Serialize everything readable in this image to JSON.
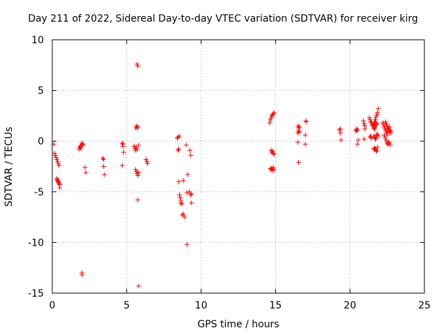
{
  "chart_data": {
    "type": "scatter",
    "title": "Day 211 of 2022, Sidereal Day-to-day VTEC variation (SDTVAR) for receiver kirg",
    "xlabel": "GPS time / hours",
    "ylabel": "SDTVAR / TECUs",
    "xlim": [
      0,
      25
    ],
    "ylim": [
      -15,
      10
    ],
    "xticks": [
      0,
      5,
      10,
      15,
      20,
      25
    ],
    "yticks": [
      -15,
      -10,
      -5,
      0,
      5,
      10
    ],
    "xtick_labels": [
      "0",
      "5",
      "10",
      "15",
      "20",
      "25"
    ],
    "ytick_labels": [
      "-15",
      "-10",
      "-5",
      "0",
      "5",
      "10"
    ],
    "grid": true,
    "marker": "+",
    "marker_color": "#ff0000",
    "x": [
      0.1,
      0.15,
      0.2,
      0.25,
      0.3,
      0.35,
      0.4,
      0.45,
      0.3,
      0.35,
      0.4,
      0.45,
      0.5,
      0.5,
      0.35,
      0.4,
      0.45,
      1.8,
      1.85,
      1.9,
      1.95,
      2.0,
      2.05,
      1.9,
      2.0,
      2.2,
      2.25,
      2.0,
      2.05,
      3.4,
      3.45,
      3.5,
      3.45,
      4.7,
      4.75,
      4.8,
      4.7,
      4.75,
      5.5,
      5.55,
      5.6,
      5.65,
      5.7,
      5.6,
      5.65,
      5.7,
      5.75,
      5.8,
      5.7,
      5.75,
      5.6,
      5.65,
      5.7,
      5.75,
      5.75,
      5.8,
      5.8,
      6.3,
      6.35,
      6.4,
      8.4,
      8.45,
      8.5,
      8.55,
      8.6,
      8.65,
      8.7,
      8.75,
      8.8,
      8.45,
      8.5,
      8.55,
      8.65,
      8.8,
      8.9,
      9.0,
      9.05,
      9.1,
      9.2,
      9.25,
      9.3,
      9.35,
      9.3,
      9.35,
      9.05,
      14.6,
      14.65,
      14.7,
      14.75,
      14.8,
      14.85,
      14.9,
      14.7,
      14.75,
      14.8,
      14.85,
      14.9,
      14.65,
      14.7,
      14.75,
      14.8,
      14.85,
      14.9,
      16.5,
      16.55,
      16.6,
      16.5,
      16.55,
      16.6,
      16.55,
      16.5,
      17.0,
      17.05,
      17.0,
      17.05,
      19.3,
      19.35,
      19.4,
      19.35,
      20.4,
      20.45,
      20.5,
      20.55,
      20.5,
      20.45,
      20.9,
      20.95,
      21.0,
      20.95,
      21.0,
      21.3,
      21.35,
      21.4,
      21.45,
      21.5,
      21.55,
      21.6,
      21.65,
      21.7,
      21.75,
      21.8,
      21.85,
      21.9,
      21.6,
      21.65,
      21.7,
      21.75,
      21.8,
      21.85,
      21.9,
      21.55,
      21.6,
      21.65,
      21.7,
      21.75,
      21.8,
      21.65,
      21.7,
      21.75,
      21.8,
      21.85,
      21.35,
      21.4,
      21.45,
      21.6,
      21.65,
      21.7,
      21.75,
      22.2,
      22.25,
      22.3,
      22.35,
      22.4,
      22.45,
      22.5,
      22.55,
      22.6,
      22.65,
      22.7,
      22.3,
      22.35,
      22.4,
      22.45,
      22.5,
      22.55,
      22.6,
      22.65,
      22.7,
      22.4,
      22.45,
      22.5,
      22.55,
      22.6,
      22.65,
      22.7,
      22.75
    ],
    "y": [
      -0.3,
      -1.2,
      -1.4,
      -1.6,
      -1.8,
      -2.0,
      -2.2,
      -2.4,
      -3.7,
      -3.9,
      -4.0,
      -4.1,
      -4.3,
      -4.6,
      -3.8,
      -4.0,
      -4.2,
      -0.8,
      -0.6,
      -0.5,
      -0.4,
      -0.2,
      -0.4,
      -0.7,
      -13.0,
      -2.6,
      -3.1,
      -13.2,
      -0.3,
      -1.7,
      -2.5,
      -3.3,
      -1.8,
      -0.2,
      -0.5,
      -1.1,
      -2.4,
      -0.3,
      -0.5,
      -0.7,
      -0.9,
      -0.6,
      -0.8,
      -2.8,
      -3.0,
      -3.2,
      -3.4,
      -3.1,
      1.3,
      1.4,
      1.3,
      1.5,
      7.6,
      7.4,
      -5.8,
      -14.3,
      -0.4,
      -1.8,
      -2.0,
      -2.2,
      0.3,
      -0.9,
      -4.0,
      -5.3,
      -5.6,
      -5.9,
      -6.2,
      -7.3,
      -3.9,
      0.4,
      -0.8,
      0.5,
      -6.1,
      -7.2,
      -7.5,
      -0.4,
      -10.2,
      -3.3,
      -5.0,
      -0.9,
      -1.4,
      -5.2,
      -5.3,
      -6.1,
      -5.1,
      1.8,
      2.1,
      2.3,
      2.5,
      2.6,
      2.7,
      2.8,
      -0.9,
      -1.1,
      -1.0,
      -1.2,
      -1.3,
      -2.7,
      -2.8,
      -2.7,
      -2.9,
      -2.6,
      -2.8,
      1.5,
      1.3,
      1.4,
      0.8,
      1.0,
      0.9,
      -2.1,
      -0.1,
      0.6,
      1.9,
      -0.3,
      2.0,
      1.1,
      1.2,
      0.1,
      0.8,
      1.0,
      1.2,
      1.1,
      0.1,
      -0.3,
      1.1,
      2.0,
      1.7,
      1.5,
      0.2,
      1.2,
      2.3,
      2.1,
      1.9,
      1.8,
      1.6,
      1.5,
      1.7,
      1.9,
      2.1,
      2.4,
      2.6,
      2.8,
      3.2,
      0.5,
      0.4,
      0.2,
      0.3,
      0.6,
      0.7,
      0.5,
      1.5,
      1.3,
      1.2,
      1.4,
      1.6,
      1.7,
      -0.7,
      -0.8,
      -0.9,
      -1.0,
      -0.6,
      0.4,
      0.5,
      0.3,
      -0.8,
      -0.7,
      1.6,
      1.8,
      1.8,
      1.6,
      1.4,
      1.2,
      1.0,
      0.8,
      0.6,
      1.0,
      1.2,
      1.4,
      1.1,
      0.6,
      0.4,
      0.2,
      0.0,
      -0.2,
      -0.3,
      -0.1,
      -0.2,
      -0.4,
      1.9,
      1.7,
      1.5,
      1.3,
      1.1,
      0.9,
      1.0,
      0.8
    ]
  }
}
